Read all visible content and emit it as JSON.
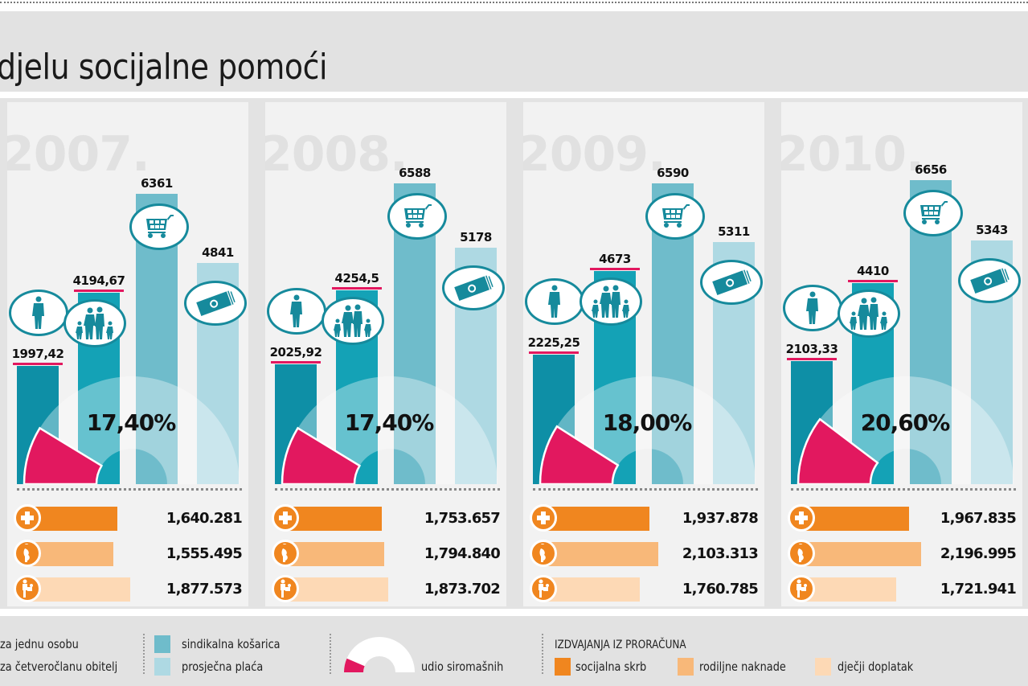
{
  "header": {
    "title": "djelu socijalne pomoći"
  },
  "chart_data": [
    {
      "type": "bar",
      "title": "djelu socijalne pomoći",
      "categories": [
        "2007.",
        "2008.",
        "2009.",
        "2010."
      ],
      "series": [
        {
          "name": "za jednu osobu",
          "values": [
            1997.42,
            2025.92,
            2225.25,
            2103.33
          ]
        },
        {
          "name": "za četveročlanu obitelj",
          "values": [
            4194.67,
            4254.5,
            4673,
            4410
          ]
        },
        {
          "name": "sindikalna košarica",
          "values": [
            6361,
            6588,
            6590,
            6656
          ]
        },
        {
          "name": "prosječna plaća",
          "values": [
            4841,
            5178,
            5311,
            5343
          ]
        }
      ]
    },
    {
      "type": "pie",
      "title": "udio siromašnih",
      "categories": [
        "2007.",
        "2008.",
        "2009.",
        "2010."
      ],
      "values": [
        17.4,
        17.4,
        18.0,
        20.6
      ]
    },
    {
      "type": "bar",
      "title": "IZDVAJANJA IZ PRORAČUNA",
      "categories": [
        "2007.",
        "2008.",
        "2009.",
        "2010."
      ],
      "series": [
        {
          "name": "socijalna skrb",
          "values": [
            1640.281,
            1753.657,
            1937.878,
            1967.835
          ]
        },
        {
          "name": "rodiljne naknade",
          "values": [
            1555.495,
            1794.84,
            2103.313,
            2196.995
          ]
        },
        {
          "name": "dječji doplatak",
          "values": [
            1877.573,
            1873.702,
            1760.785,
            1721.941
          ]
        }
      ]
    }
  ],
  "years": [
    {
      "label": "2007.",
      "single": "1997,42",
      "family": "4194,67",
      "basket": "6361",
      "salary": "4841",
      "poverty": "17,40%",
      "budget": [
        "1,640.281",
        "1,555.495",
        "1,877.573"
      ]
    },
    {
      "label": "2008.",
      "single": "2025,92",
      "family": "4254,5",
      "basket": "6588",
      "salary": "5178",
      "poverty": "17,40%",
      "budget": [
        "1,753.657",
        "1,794.840",
        "1,873.702"
      ]
    },
    {
      "label": "2009.",
      "single": "2225,25",
      "family": "4673",
      "basket": "6590",
      "salary": "5311",
      "poverty": "18,00%",
      "budget": [
        "1,937.878",
        "2,103.313",
        "1,760.785"
      ]
    },
    {
      "label": "2010.",
      "single": "2103,33",
      "family": "4410",
      "basket": "6656",
      "salary": "5343",
      "poverty": "20,60%",
      "budget": [
        "1,967.835",
        "2,196.995",
        "1,721.941"
      ]
    }
  ],
  "legend": {
    "single": "za jednu osobu",
    "family": "za četveročlanu obitelj",
    "basket": "sindikalna košarica",
    "salary": "prosječna plaća",
    "poverty": "udio siromašnih",
    "budget_title": "IZDVAJANJA IZ PRORAČUNA",
    "welfare": "socijalna skrb",
    "maternity": "rodiljne naknade",
    "child": "dječji doplatak"
  },
  "colors": {
    "single": "#0e8fa6",
    "family": "#14a2b6",
    "basket": "#6fbccb",
    "salary": "#aed9e3",
    "poverty": "#e2185f",
    "welfare": "#f0861f",
    "maternity": "#f8b879",
    "child": "#fdd9b5"
  }
}
